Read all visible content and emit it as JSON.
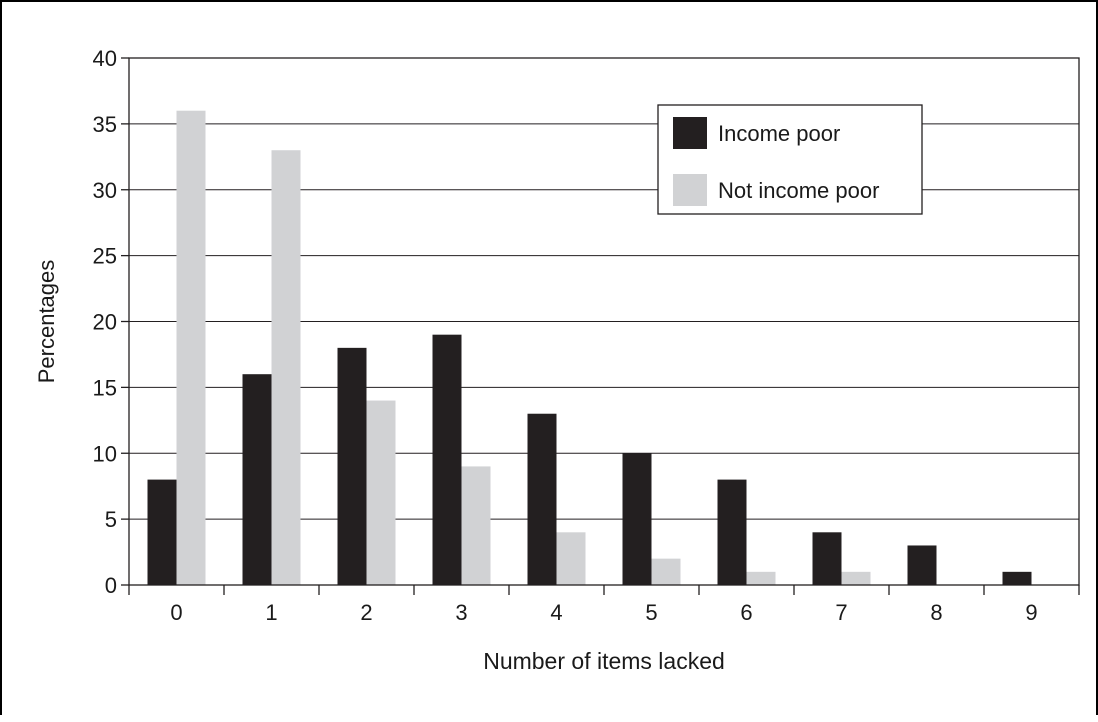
{
  "chart_data": {
    "type": "bar",
    "title": "",
    "xlabel": "Number of items lacked",
    "ylabel": "Percentages",
    "categories": [
      "0",
      "1",
      "2",
      "3",
      "4",
      "5",
      "6",
      "7",
      "8",
      "9"
    ],
    "series": [
      {
        "name": "Income poor",
        "color": "#231f20",
        "values": [
          8,
          16,
          18,
          19,
          13,
          10,
          8,
          4,
          3,
          1
        ]
      },
      {
        "name": "Not income poor",
        "color": "#d1d2d4",
        "values": [
          36,
          33,
          14,
          9,
          4,
          2,
          1,
          1,
          0,
          0
        ]
      }
    ],
    "ylim": [
      0,
      40
    ],
    "yticks": [
      "0",
      "5",
      "10",
      "15",
      "20",
      "25",
      "30",
      "35",
      "40"
    ],
    "grid": true,
    "legend_position": "top-right"
  }
}
